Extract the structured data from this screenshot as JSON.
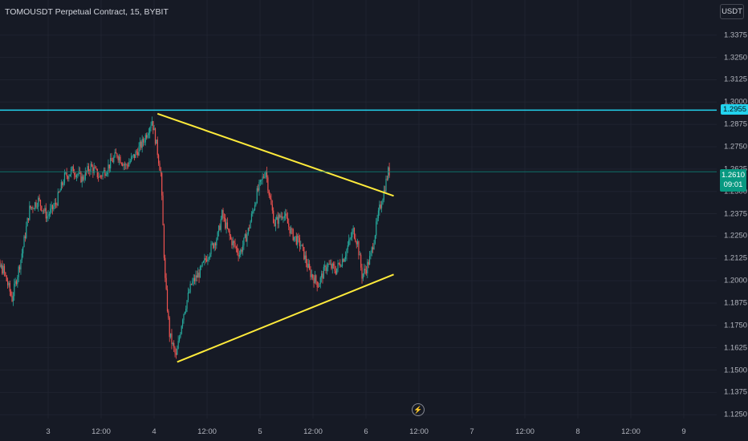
{
  "header": {
    "title": "TOMOUSDT Perpetual Contract, 15, BYBIT"
  },
  "currency_button": {
    "label": "USDT"
  },
  "colors": {
    "background": "#161a25",
    "up_candle": "#26a69a",
    "down_candle": "#ef5350",
    "trendline": "#ffeb3b",
    "resistance_line": "#22d3ee",
    "live_price": "#089981"
  },
  "icons": {
    "event_marker": "lightning-icon"
  },
  "chart_data": {
    "type": "candlestick",
    "title": "TOMOUSDT Perpetual Contract, 15, BYBIT",
    "ylim": [
      1.115,
      1.346
    ],
    "yticks": [
      "1.3375",
      "1.3250",
      "1.3125",
      "1.3000",
      "1.2875",
      "1.2750",
      "1.2625",
      "1.2500",
      "1.2375",
      "1.2250",
      "1.2125",
      "1.2000",
      "1.1875",
      "1.1750",
      "1.1625",
      "1.1500",
      "1.1375",
      "1.1250"
    ],
    "xticks": [
      "3",
      "12:00",
      "4",
      "12:00",
      "5",
      "12:00",
      "6",
      "12:00",
      "7",
      "12:00",
      "8",
      "12:00",
      "9"
    ],
    "x_domain": "time index: 0 = start of day 3, 1 unit = 1 hour",
    "price_path": [
      [
        -14,
        1.214
      ],
      [
        -10,
        1.206
      ],
      [
        -8,
        1.19
      ],
      [
        -6,
        1.212
      ],
      [
        -4,
        1.24
      ],
      [
        -2,
        1.245
      ],
      [
        0,
        1.236
      ],
      [
        2,
        1.243
      ],
      [
        4,
        1.258
      ],
      [
        6,
        1.262
      ],
      [
        8,
        1.257
      ],
      [
        10,
        1.264
      ],
      [
        12,
        1.258
      ],
      [
        14,
        1.264
      ],
      [
        16,
        1.271
      ],
      [
        18,
        1.264
      ],
      [
        20,
        1.27
      ],
      [
        22,
        1.278
      ],
      [
        24,
        1.29
      ],
      [
        25,
        1.276
      ],
      [
        26,
        1.26
      ],
      [
        27,
        1.2
      ],
      [
        28,
        1.17
      ],
      [
        29.5,
        1.157
      ],
      [
        31,
        1.18
      ],
      [
        33,
        1.198
      ],
      [
        35,
        1.205
      ],
      [
        37,
        1.216
      ],
      [
        39,
        1.225
      ],
      [
        40,
        1.237
      ],
      [
        42,
        1.223
      ],
      [
        44,
        1.215
      ],
      [
        46,
        1.228
      ],
      [
        48,
        1.249
      ],
      [
        50,
        1.262
      ],
      [
        51,
        1.245
      ],
      [
        52,
        1.232
      ],
      [
        54,
        1.238
      ],
      [
        56,
        1.226
      ],
      [
        58,
        1.22
      ],
      [
        60,
        1.205
      ],
      [
        62,
        1.198
      ],
      [
        64,
        1.209
      ],
      [
        66,
        1.206
      ],
      [
        68,
        1.214
      ],
      [
        70,
        1.228
      ],
      [
        71,
        1.221
      ],
      [
        72,
        1.203
      ],
      [
        73,
        1.207
      ],
      [
        74,
        1.214
      ],
      [
        76,
        1.24
      ],
      [
        77,
        1.25
      ],
      [
        78,
        1.261
      ]
    ],
    "lines": [
      {
        "type": "trendline",
        "from": [
          25,
          1.2935
        ],
        "to": [
          79,
          1.2475
        ]
      },
      {
        "type": "trendline",
        "from": [
          29.5,
          1.1545
        ],
        "to": [
          79,
          1.2035
        ]
      },
      {
        "type": "horizontal_level",
        "value": 1.2955
      },
      {
        "type": "horizontal_level",
        "value": 1.261
      }
    ],
    "price_labels": {
      "level": "1.2955",
      "last": "1.2610",
      "countdown": "09:01"
    }
  }
}
